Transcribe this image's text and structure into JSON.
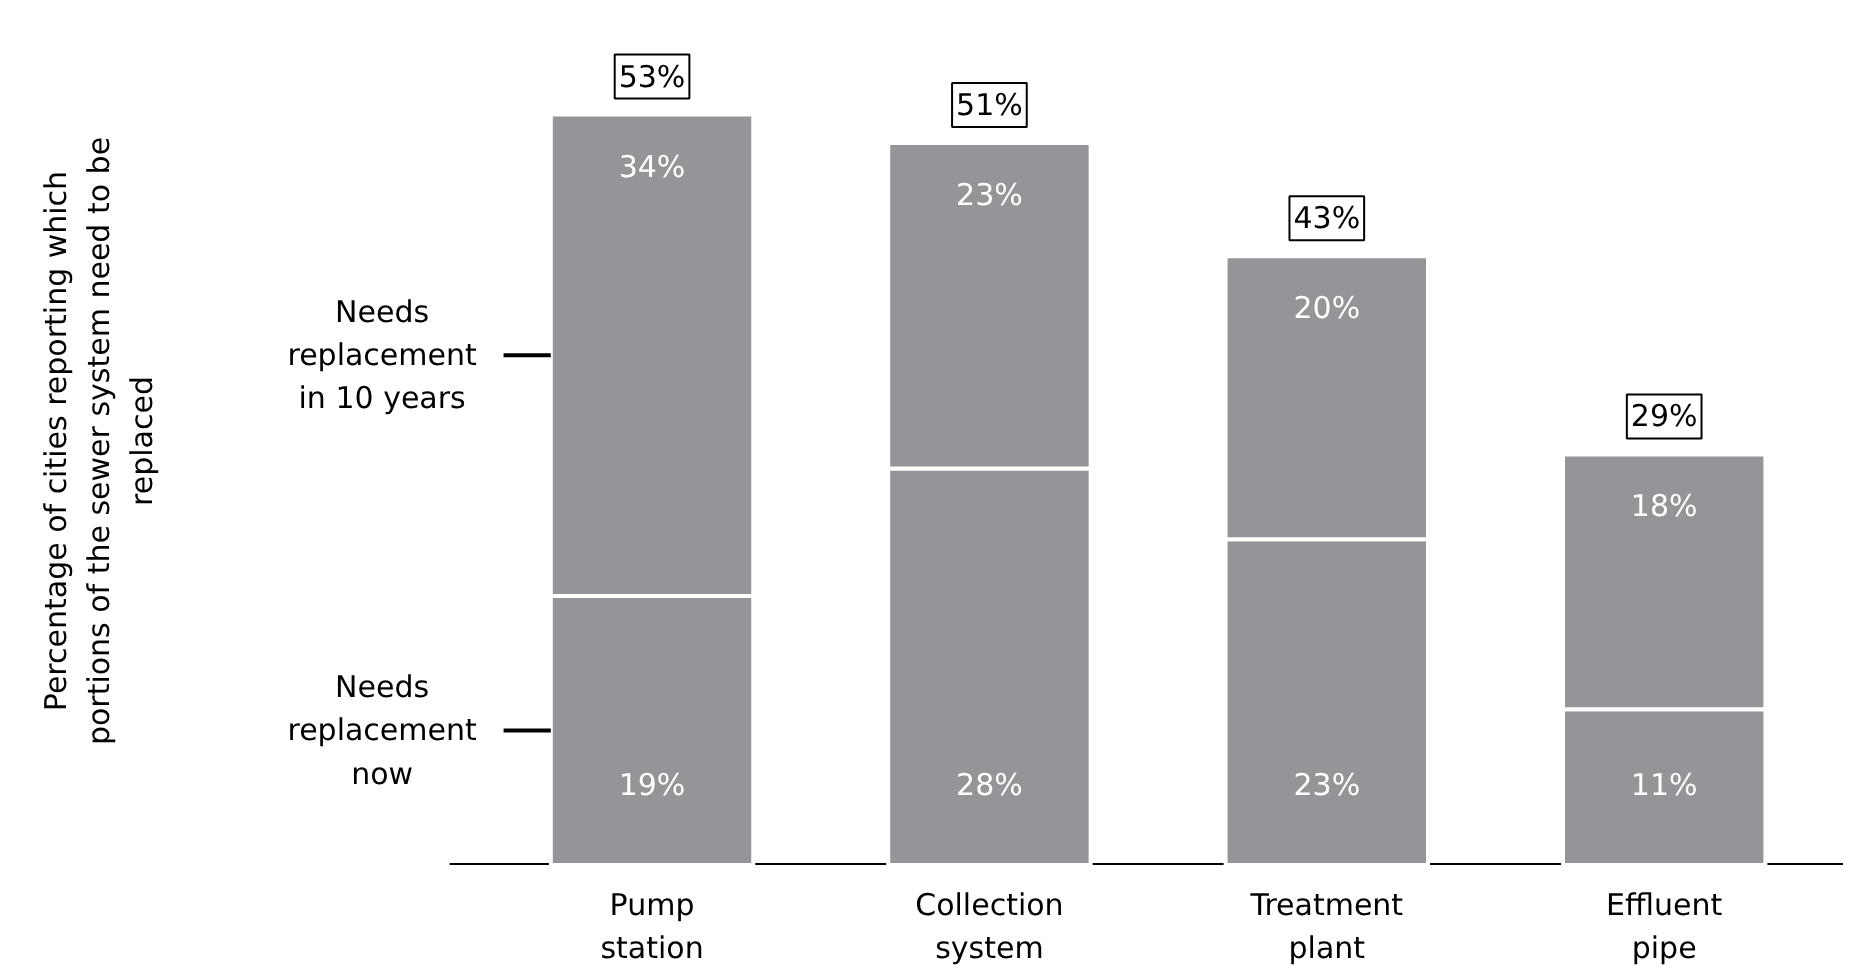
{
  "chart_data": {
    "type": "bar",
    "stacked": true,
    "annotations": [
      "Percentage of cities reporting which portions of the sewer system need to be replaced"
    ],
    "categories": [
      "Pump station",
      "Collection system",
      "Treatment plant",
      "Effluent pipe"
    ],
    "series": [
      {
        "name": "Needs replacement now",
        "color": "#939598",
        "values": [
          19,
          28,
          23,
          11
        ],
        "value_labels": [
          "19%",
          "28%",
          "23%",
          "11%"
        ]
      },
      {
        "name": "Needs replacement in 10 years",
        "color": "#939598",
        "values": [
          34,
          23,
          20,
          18
        ],
        "value_labels": [
          "34%",
          "23%",
          "20%",
          "18%"
        ]
      }
    ],
    "totals": [
      "53%",
      "51%",
      "43%",
      "29%"
    ],
    "tick_labels": "x",
    "grid": false
  }
}
